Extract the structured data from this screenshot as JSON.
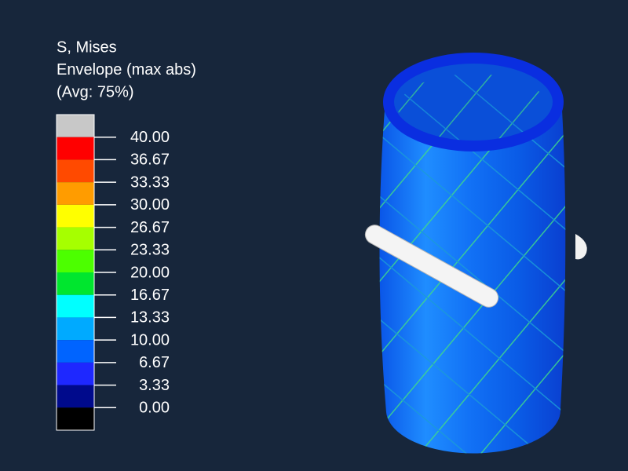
{
  "legend": {
    "title": [
      "S, Mises",
      "Envelope (max abs)",
      "(Avg: 75%)"
    ],
    "bands": [
      "#c8c8c8",
      "#ff0000",
      "#ff4a00",
      "#ff9c00",
      "#ffff00",
      "#a6ff00",
      "#4cff00",
      "#00e62e",
      "#00ffff",
      "#00aaff",
      "#0064ff",
      "#1e28ff",
      "#000a8c",
      "#000000"
    ],
    "ticks": [
      "40.00",
      "36.67",
      "33.33",
      "30.00",
      "26.67",
      "23.33",
      "20.00",
      "16.67",
      "13.33",
      "10.00",
      "6.67",
      "3.33",
      "0.00"
    ]
  }
}
